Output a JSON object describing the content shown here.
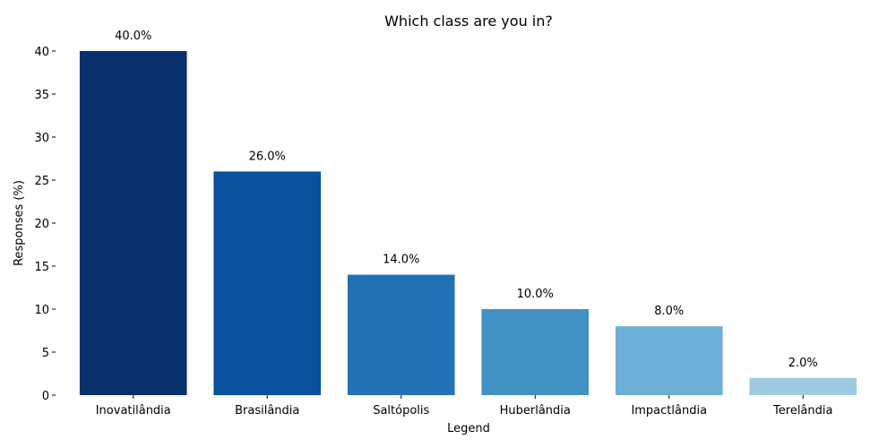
{
  "chart_data": {
    "type": "bar",
    "title": "Which class are you in?",
    "xlabel": "Legend",
    "ylabel": "Responses (%)",
    "categories": [
      "Inovatilândia",
      "Brasilândia",
      "Saltópolis",
      "Huberlândia",
      "Impactlândia",
      "Terelândia"
    ],
    "values": [
      40,
      26,
      14,
      10,
      8,
      2
    ],
    "data_labels": [
      "40.0%",
      "26.0%",
      "14.0%",
      "10.0%",
      "8.0%",
      "2.0%"
    ],
    "colors": [
      "#08306b",
      "#08519c",
      "#2171b5",
      "#4292c6",
      "#6baed6",
      "#9ecae1"
    ],
    "ylim": [
      0,
      40
    ],
    "yticks": [
      0,
      5,
      10,
      15,
      20,
      25,
      30,
      35,
      40
    ],
    "grid": false,
    "legend": "none"
  }
}
